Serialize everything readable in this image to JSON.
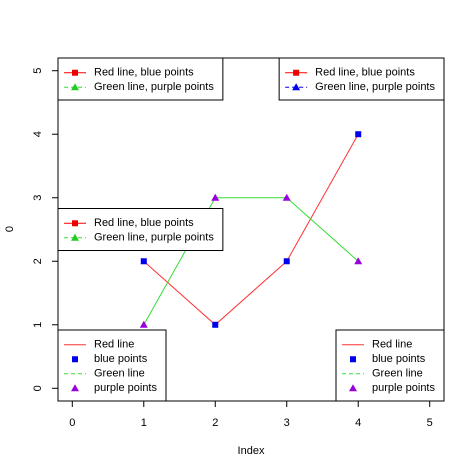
{
  "chart_data": {
    "type": "line",
    "x_label": "Index",
    "y_label": "0",
    "x": [
      1,
      2,
      3,
      4
    ],
    "series": [
      {
        "color": "#ff3333",
        "values": [
          2,
          1,
          2,
          4
        ],
        "mode": "line"
      },
      {
        "color": "#0000ee",
        "values": [
          2,
          1,
          2,
          4
        ],
        "mode": "points",
        "shape": "square"
      },
      {
        "color": "#33dd33",
        "values": [
          1,
          3,
          3,
          2
        ],
        "mode": "line"
      },
      {
        "color": "#9900dd",
        "values": [
          1,
          3,
          3,
          2
        ],
        "mode": "points",
        "shape": "triangle"
      }
    ],
    "xlim": [
      -0.2,
      5.2
    ],
    "ylim": [
      -0.2,
      5.2
    ],
    "xticks": [
      0,
      1,
      2,
      3,
      4,
      5
    ],
    "yticks": [
      0,
      1,
      2,
      3,
      4,
      5
    ],
    "legends": [
      {
        "position": "topleft",
        "entries": [
          {
            "label": "Red line, blue points",
            "line": "#ff0000",
            "dashed": false,
            "shape": "square",
            "point": "#ee0000"
          },
          {
            "label": "Green line, purple points",
            "line": "#33dd33",
            "dashed": true,
            "shape": "triangle",
            "point": "#22cc22"
          }
        ]
      },
      {
        "position": "topright",
        "entries": [
          {
            "label": "Red line, blue points",
            "line": "#ff0000",
            "dashed": false,
            "shape": "square",
            "point": "#ee0000"
          },
          {
            "label": "Green line, purple points",
            "line": "#0000ee",
            "dashed": true,
            "shape": "triangle",
            "point": "#0000ee"
          }
        ]
      },
      {
        "position": "left",
        "entries": [
          {
            "label": "Red line, blue points",
            "line": "#ff0000",
            "dashed": false,
            "shape": "square",
            "point": "#ee0000"
          },
          {
            "label": "Green line, purple points",
            "line": "#33dd33",
            "dashed": true,
            "shape": "triangle",
            "point": "#22cc22"
          }
        ]
      },
      {
        "position": "bottomleft",
        "entries": [
          {
            "label": "Red line",
            "line": "#ff3333",
            "dashed": false
          },
          {
            "label": "blue points",
            "shape": "square",
            "point": "#0000ee"
          },
          {
            "label": "Green line",
            "line": "#33dd33",
            "dashed": true
          },
          {
            "label": "purple points",
            "shape": "triangle",
            "point": "#9900dd"
          }
        ]
      },
      {
        "position": "bottomright",
        "entries": [
          {
            "label": "Red line",
            "line": "#ff3333",
            "dashed": false
          },
          {
            "label": "blue points",
            "shape": "square",
            "point": "#0000ee"
          },
          {
            "label": "Green line",
            "line": "#33dd33",
            "dashed": true
          },
          {
            "label": "purple points",
            "shape": "triangle",
            "point": "#9900dd"
          }
        ]
      }
    ]
  }
}
